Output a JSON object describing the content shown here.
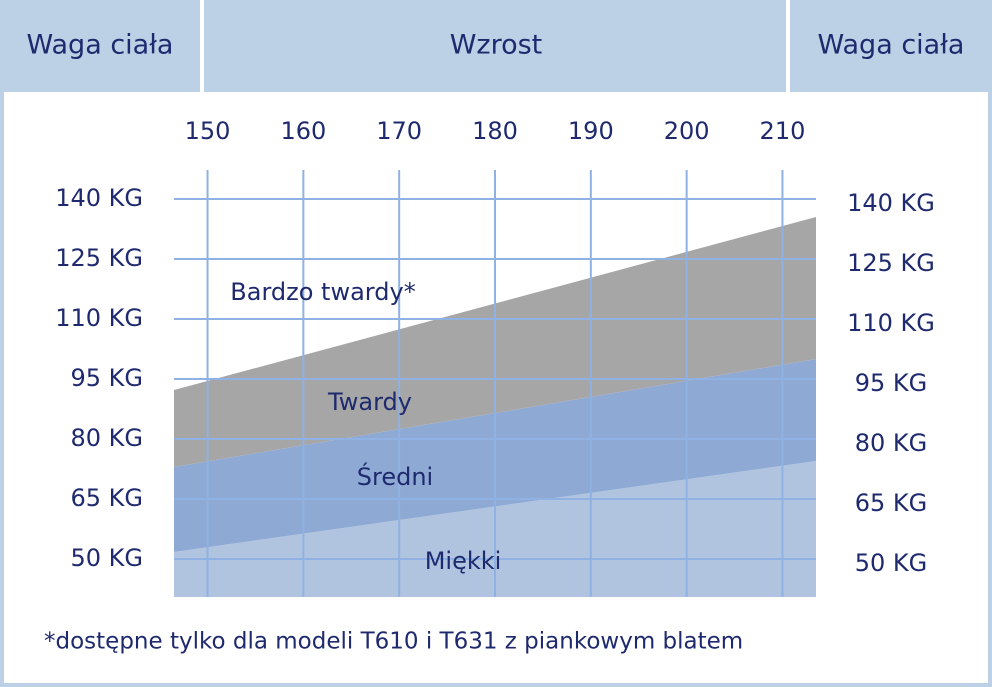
{
  "header": {
    "left": "Waga ciała",
    "center": "Wzrost",
    "right": "Waga ciała"
  },
  "chart_data": {
    "type": "area",
    "x": [
      146.5,
      213.5
    ],
    "series": [
      {
        "name": "Miękki",
        "color": "#b0c4e0",
        "values": [
          51.75,
          74.5
        ]
      },
      {
        "name": "Średni",
        "color": "#8eaad4",
        "values": [
          73,
          100
        ]
      },
      {
        "name": "Twardy",
        "color": "#a6a6a6",
        "values": [
          92.25,
          135.5
        ]
      }
    ],
    "annotation": "Bardzo twardy*",
    "xlim": [
      146.5,
      213.5
    ],
    "xticks": [
      150,
      160,
      170,
      180,
      190,
      200,
      210
    ],
    "ylim": [
      40.5,
      147.25
    ],
    "yticks": [
      {
        "value": 140,
        "label": "140 KG"
      },
      {
        "value": 125,
        "label": "125 KG"
      },
      {
        "value": 110,
        "label": "110 KG"
      },
      {
        "value": 95,
        "label": "95 KG"
      },
      {
        "value": 80,
        "label": "80 KG"
      },
      {
        "value": 65,
        "label": "65 KG"
      },
      {
        "value": 50,
        "label": "50 KG"
      }
    ],
    "y2lim": [
      41.75,
      148.5
    ],
    "y2ticks": [
      {
        "value": 140,
        "label": "140 KG"
      },
      {
        "value": 125,
        "label": "125 KG"
      },
      {
        "value": 110,
        "label": "110 KG"
      },
      {
        "value": 95,
        "label": "95 KG"
      },
      {
        "value": 80,
        "label": "80 KG"
      },
      {
        "value": 65,
        "label": "65 KG"
      },
      {
        "value": 50,
        "label": "50 KG"
      }
    ],
    "grid": true,
    "grid_color": "#8fb1e3"
  },
  "footnote": "*dostępne tylko dla modeli T610 i T631 z piankowym blatem"
}
